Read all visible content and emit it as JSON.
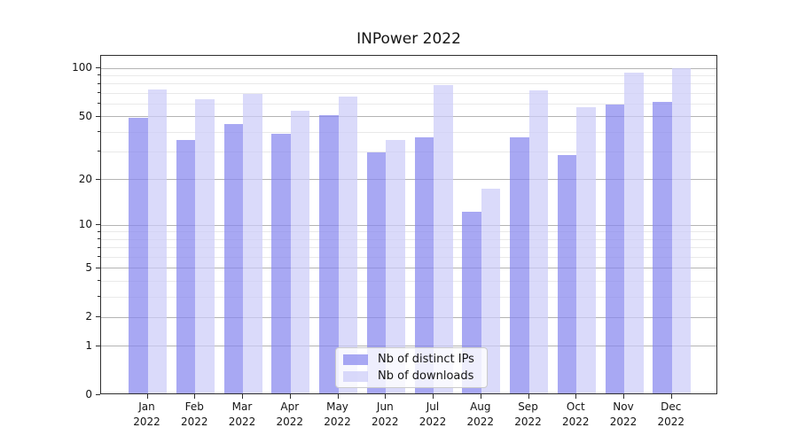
{
  "chart_data": {
    "type": "bar",
    "title": "INPower 2022",
    "categories": [
      "Jan 2022",
      "Feb 2022",
      "Mar 2022",
      "Apr 2022",
      "May 2022",
      "Jun 2022",
      "Jul 2022",
      "Aug 2022",
      "Sep 2022",
      "Oct 2022",
      "Nov 2022",
      "Dec 2022"
    ],
    "series": [
      {
        "name": "Nb of distinct IPs",
        "color": "rgba(134,134,238,0.72)",
        "apparent_color": "#a8a8f3",
        "values": [
          48,
          35,
          44,
          38,
          50,
          29,
          36,
          12,
          36,
          28,
          58,
          60
        ]
      },
      {
        "name": "Nb of downloads",
        "color": "rgba(204,204,248,0.72)",
        "apparent_color": "#dadaf9",
        "values": [
          72,
          63,
          68,
          53,
          65,
          35,
          77,
          17,
          71,
          56,
          92,
          98
        ]
      }
    ],
    "ylabel": "",
    "xlabel": "",
    "yscale": "log1p",
    "ylim": [
      0,
      120
    ],
    "yticks": [
      0,
      1,
      2,
      5,
      10,
      20,
      50,
      100
    ],
    "minor_gridlines": [
      3,
      4,
      6,
      7,
      8,
      9,
      30,
      40,
      60,
      70,
      80,
      90
    ],
    "grid": true,
    "legend_position": "lower center-right inside axes"
  }
}
